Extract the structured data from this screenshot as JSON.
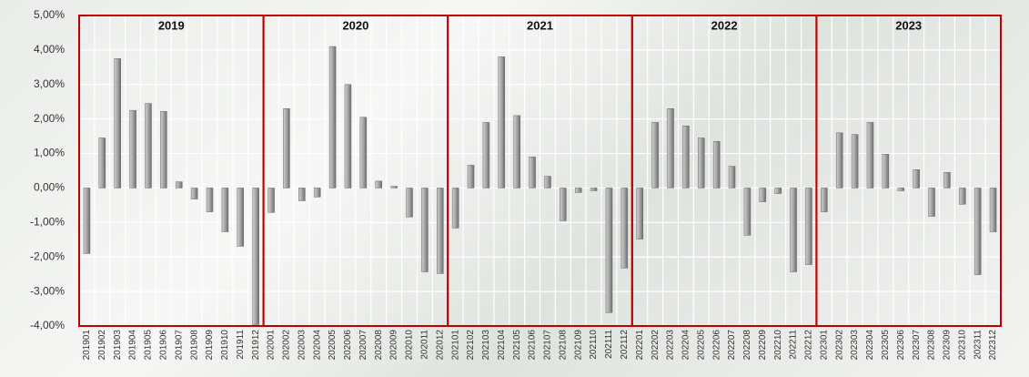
{
  "chart_data": {
    "type": "bar",
    "categories": [
      "201901",
      "201902",
      "201903",
      "201904",
      "201905",
      "201906",
      "201907",
      "201908",
      "201909",
      "201910",
      "201911",
      "201912",
      "202001",
      "202002",
      "202003",
      "202004",
      "202005",
      "202006",
      "202007",
      "202008",
      "202009",
      "202010",
      "202011",
      "202012",
      "202101",
      "202102",
      "202103",
      "202104",
      "202105",
      "202106",
      "202107",
      "202108",
      "202109",
      "202110",
      "202111",
      "202112",
      "202201",
      "202202",
      "202203",
      "202204",
      "202205",
      "202206",
      "202207",
      "202208",
      "202209",
      "202210",
      "202211",
      "202212",
      "202301",
      "202302",
      "202303",
      "202304",
      "202305",
      "202306",
      "202307",
      "202308",
      "202309",
      "202310",
      "202311",
      "202312"
    ],
    "values": [
      -1.9,
      1.45,
      3.75,
      2.25,
      2.45,
      2.22,
      0.18,
      -0.32,
      -0.69,
      -1.27,
      -1.69,
      -3.96,
      -0.71,
      2.3,
      -0.37,
      -0.26,
      4.1,
      3.0,
      2.05,
      0.2,
      0.05,
      -0.84,
      -2.43,
      -2.48,
      -1.16,
      0.66,
      1.9,
      3.8,
      2.1,
      0.9,
      0.34,
      -0.95,
      -0.13,
      -0.08,
      -3.61,
      -2.32,
      -1.48,
      1.9,
      2.3,
      1.8,
      1.45,
      1.35,
      0.63,
      -1.37,
      -0.4,
      -0.16,
      -2.43,
      -2.22,
      -0.69,
      1.6,
      1.55,
      1.9,
      0.98,
      -0.08,
      0.53,
      -0.82,
      0.45,
      -0.47,
      -2.51,
      -1.27
    ],
    "group_labels": [
      "2019",
      "2020",
      "2021",
      "2022",
      "2023"
    ],
    "color": "#a6a6a6",
    "group_frame_color": "#c00000",
    "ylim": [
      -4,
      5
    ],
    "yticks": [
      {
        "value": -4,
        "label": "-4,00%"
      },
      {
        "value": -3,
        "label": "-3,00%"
      },
      {
        "value": -2,
        "label": "-2,00%"
      },
      {
        "value": -1,
        "label": "-1,00%"
      },
      {
        "value": 0,
        "label": "0,00%"
      },
      {
        "value": 1,
        "label": "1,00%"
      },
      {
        "value": 2,
        "label": "2,00%"
      },
      {
        "value": 3,
        "label": "3,00%"
      },
      {
        "value": 4,
        "label": "4,00%"
      },
      {
        "value": 5,
        "label": "5,00%"
      }
    ],
    "grid": true
  }
}
